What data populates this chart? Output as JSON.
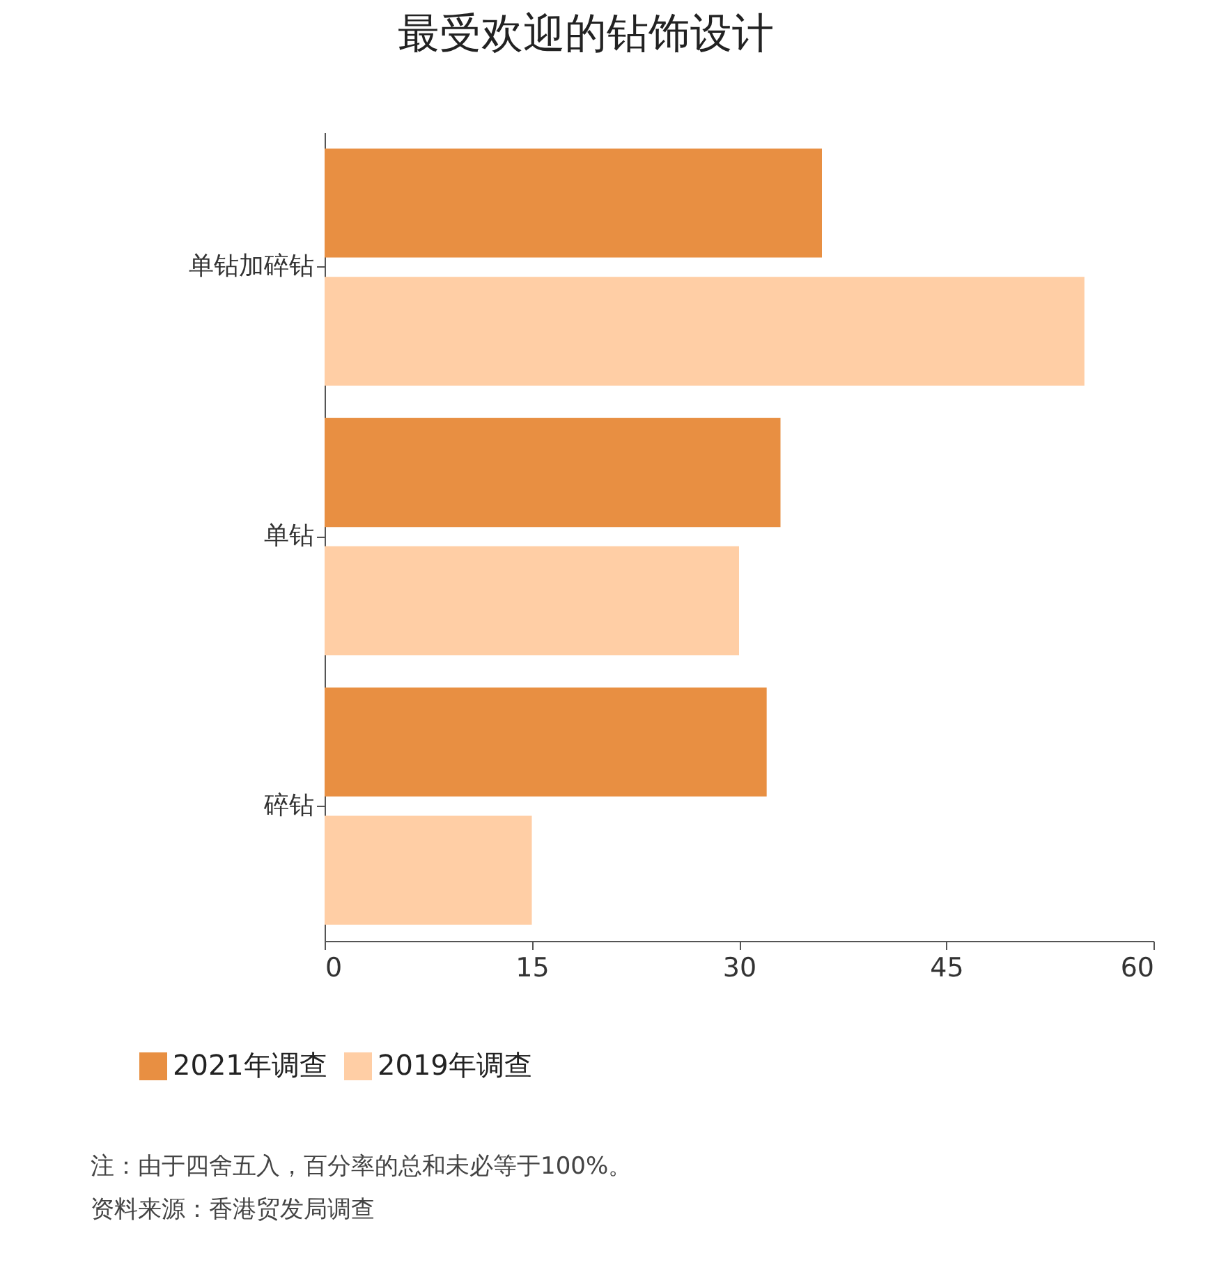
{
  "chart_data": {
    "type": "bar",
    "orientation": "horizontal",
    "title": "最受欢迎的钻饰设计",
    "categories": [
      "单钻加碎钻",
      "单钻",
      "碎钻"
    ],
    "series": [
      {
        "name": "2021年调查",
        "color": "#e88f42",
        "values": [
          36,
          33,
          32
        ]
      },
      {
        "name": "2019年调查",
        "color": "#ffcea5",
        "values": [
          55,
          30,
          15
        ]
      }
    ],
    "xlim": [
      0,
      60
    ],
    "xticks": [
      0,
      15,
      30,
      45,
      60
    ],
    "grid": false,
    "legend": "bottom",
    "annotations": [
      "注：由于四舍五入，百分率的总和未必等于100%。",
      "资料来源：香港贸发局调查"
    ]
  }
}
